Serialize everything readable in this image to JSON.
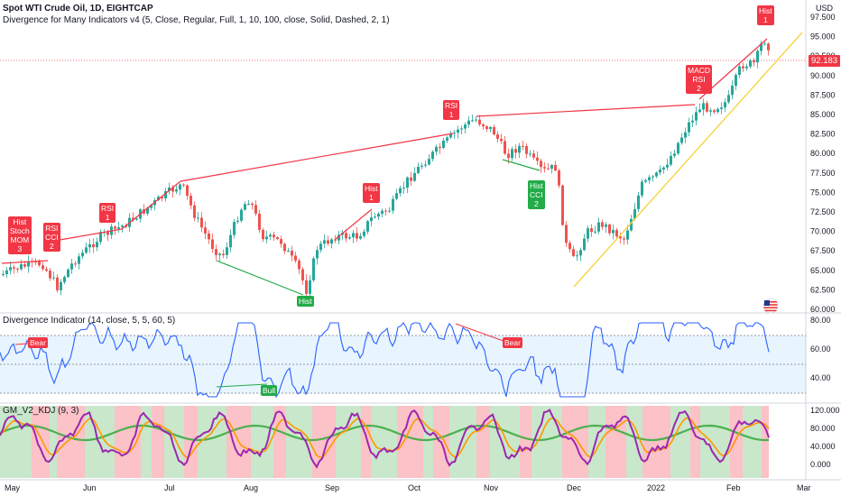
{
  "header": {
    "symbol_line": "Spot WTI Crude Oil, 1D, EIGHTCAP",
    "indicator_line": "Divergence for Many Indicators v4 (5, Close, Regular, Full, 1, 10, 100, close, Solid, Dashed, 2, 1)"
  },
  "price_axis": {
    "currency": "USD",
    "ticks": [
      "97.500",
      "95.000",
      "92.500",
      "90.000",
      "87.500",
      "85.000",
      "82.500",
      "80.000",
      "77.500",
      "75.000",
      "72.500",
      "70.000",
      "67.500",
      "65.000",
      "62.500",
      "60.000"
    ],
    "last_price": "92.183"
  },
  "signals": [
    {
      "text": [
        "Hist",
        "Stoch",
        "MOM",
        "3"
      ],
      "type": "bear"
    },
    {
      "text": [
        "RSI",
        "CCI",
        "2"
      ],
      "type": "bear"
    },
    {
      "text": [
        "RSI",
        "1"
      ],
      "type": "bear"
    },
    {
      "text": [
        "Hist",
        "1"
      ],
      "type": "bear"
    },
    {
      "text": [
        "RSI",
        "1"
      ],
      "type": "bear"
    },
    {
      "text": [
        "MACD",
        "RSI",
        "2"
      ],
      "type": "bear"
    },
    {
      "text": [
        "Hist",
        "1"
      ],
      "type": "bear"
    },
    {
      "text": [
        "Hist",
        "CCI",
        "2"
      ],
      "type": "bull"
    },
    {
      "text": [
        "Hist"
      ],
      "type": "bull"
    }
  ],
  "pane2": {
    "title": "Divergence Indicator (14, close, 5, 5, 60, 5)",
    "ticks": [
      "80.00",
      "60.00",
      "40.00"
    ],
    "labels": [
      "Bear",
      "Bear",
      "Bull"
    ]
  },
  "pane3": {
    "title": "GM_V2_KDJ (9, 3)",
    "ticks": [
      "120.000",
      "80.000",
      "40.000",
      "0.000"
    ]
  },
  "time_axis": [
    "May",
    "Jun",
    "Jul",
    "Aug",
    "Sep",
    "Oct",
    "Nov",
    "Dec",
    "2022",
    "Feb",
    "Mar"
  ],
  "colors": {
    "up": "#26a69a",
    "down": "#ef5350",
    "bear": "#f23645",
    "bull": "#22ab48",
    "trend": "#f5d547",
    "rsi_line": "#2962ff",
    "kdj_k": "#9c27b0",
    "kdj_d": "#ff9800",
    "kdj_j": "#4caf50"
  }
}
